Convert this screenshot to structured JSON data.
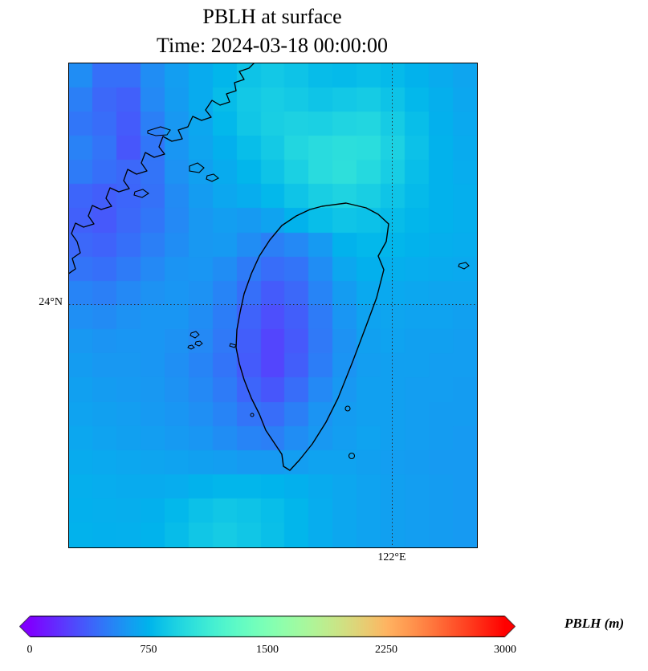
{
  "chart_data": {
    "type": "heatmap",
    "title": "PBLH at surface",
    "subtitle": "Time: 2024-03-18 00:00:00",
    "variable": "PBLH",
    "colormap": "rainbow",
    "vmin": 0,
    "vmax": 3000,
    "colorbar_label": "PBLH (m)",
    "colorbar_ticks": [
      0,
      750,
      1500,
      2250,
      3000
    ],
    "colorbar_extend": "both",
    "gridlines": {
      "lat_label": "24°N",
      "lon_label": "122°E",
      "lat_frac": 0.498,
      "lon_frac": 0.792,
      "style": "dotted"
    },
    "region": "Taiwan and southeast China coast",
    "grid": {
      "rows": 20,
      "cols": 17
    },
    "values": [
      [
        560,
        430,
        430,
        560,
        640,
        700,
        760,
        830,
        860,
        830,
        790,
        780,
        800,
        780,
        740,
        700,
        670
      ],
      [
        500,
        400,
        370,
        540,
        630,
        700,
        790,
        860,
        890,
        870,
        840,
        860,
        880,
        830,
        770,
        720,
        680
      ],
      [
        460,
        420,
        350,
        500,
        610,
        680,
        770,
        850,
        900,
        920,
        910,
        940,
        950,
        880,
        800,
        730,
        690
      ],
      [
        510,
        450,
        330,
        460,
        600,
        670,
        730,
        800,
        870,
        950,
        990,
        1010,
        1000,
        920,
        820,
        740,
        700
      ],
      [
        480,
        430,
        400,
        450,
        580,
        650,
        700,
        760,
        830,
        910,
        990,
        1020,
        970,
        890,
        800,
        740,
        710
      ],
      [
        390,
        360,
        390,
        440,
        550,
        630,
        680,
        710,
        770,
        840,
        900,
        930,
        900,
        840,
        780,
        740,
        720
      ],
      [
        370,
        340,
        400,
        460,
        540,
        610,
        640,
        620,
        660,
        740,
        800,
        840,
        820,
        790,
        760,
        740,
        720
      ],
      [
        400,
        380,
        430,
        500,
        560,
        610,
        620,
        560,
        500,
        540,
        620,
        740,
        770,
        760,
        740,
        720,
        710
      ],
      [
        450,
        430,
        480,
        540,
        590,
        600,
        560,
        480,
        420,
        450,
        560,
        680,
        730,
        720,
        710,
        700,
        690
      ],
      [
        520,
        500,
        540,
        580,
        600,
        580,
        520,
        430,
        350,
        400,
        520,
        630,
        690,
        690,
        680,
        670,
        670
      ],
      [
        570,
        550,
        580,
        600,
        600,
        560,
        490,
        380,
        300,
        360,
        480,
        600,
        660,
        670,
        660,
        660,
        650
      ],
      [
        610,
        590,
        600,
        600,
        580,
        540,
        470,
        360,
        260,
        340,
        470,
        580,
        650,
        660,
        650,
        650,
        640
      ],
      [
        630,
        610,
        610,
        600,
        570,
        520,
        450,
        350,
        260,
        360,
        490,
        590,
        640,
        650,
        650,
        640,
        640
      ],
      [
        650,
        630,
        620,
        610,
        580,
        540,
        480,
        390,
        330,
        420,
        540,
        610,
        650,
        650,
        640,
        640,
        630
      ],
      [
        660,
        650,
        640,
        620,
        600,
        570,
        520,
        450,
        420,
        500,
        590,
        630,
        650,
        650,
        640,
        630,
        630
      ],
      [
        680,
        660,
        650,
        640,
        620,
        600,
        560,
        520,
        500,
        560,
        610,
        640,
        660,
        650,
        640,
        630,
        620
      ],
      [
        700,
        690,
        680,
        670,
        660,
        650,
        640,
        620,
        620,
        640,
        660,
        660,
        650,
        640,
        630,
        620,
        620
      ],
      [
        720,
        710,
        700,
        700,
        710,
        740,
        760,
        760,
        750,
        730,
        700,
        680,
        660,
        650,
        640,
        630,
        620
      ],
      [
        730,
        720,
        715,
        730,
        770,
        820,
        850,
        830,
        800,
        760,
        710,
        680,
        660,
        650,
        640,
        630,
        620
      ],
      [
        740,
        730,
        725,
        745,
        790,
        850,
        880,
        850,
        810,
        760,
        710,
        680,
        660,
        650,
        640,
        630,
        620
      ]
    ]
  }
}
